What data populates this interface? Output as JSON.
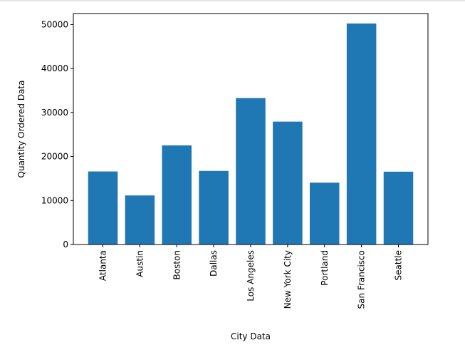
{
  "chart_data": {
    "type": "bar",
    "title": "",
    "xlabel": "City Data",
    "ylabel": "Quantity Ordered Data",
    "categories": [
      "Atlanta",
      "Austin",
      "Boston",
      "Dallas",
      "Los Angeles",
      "New York City",
      "Portland",
      "San Francisco",
      "Seattle"
    ],
    "values": [
      16602,
      11153,
      22528,
      16730,
      33289,
      27932,
      14053,
      50239,
      16553
    ],
    "ylim": [
      0,
      52500
    ],
    "yticks": [
      0,
      10000,
      20000,
      30000,
      40000,
      50000
    ],
    "grid": false,
    "legend": "none",
    "bar_color": "#1f77b4"
  }
}
